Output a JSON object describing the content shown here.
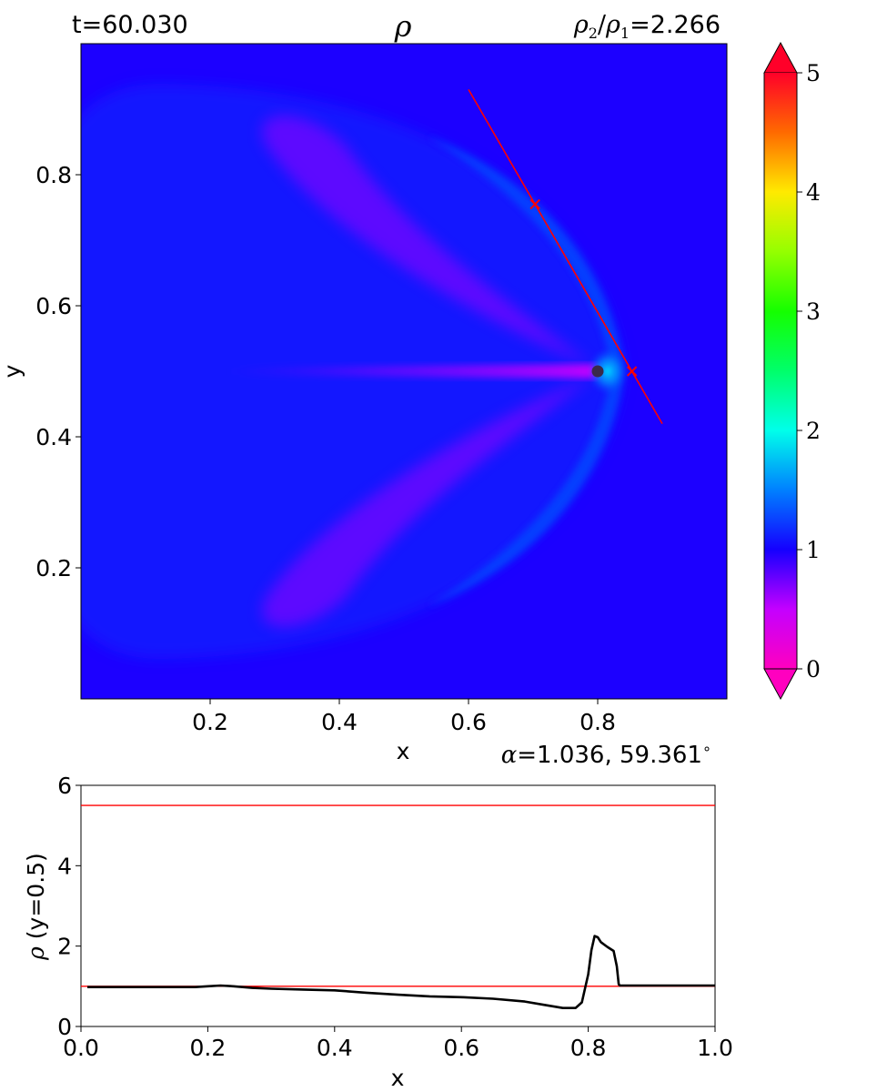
{
  "header": {
    "time": "t=60.030",
    "ratio_var": "ρ",
    "ratio_num_sub": "2",
    "ratio_den_sub": "1",
    "ratio_value": "=2.266"
  },
  "alpha_label": {
    "symbol": "α",
    "value": "=1.036, 59.361",
    "degree": "∘"
  },
  "colorbar": {
    "ticks": [
      "0",
      "1",
      "2",
      "3",
      "4",
      "5"
    ],
    "range": [
      0,
      5
    ],
    "colormap": "gist_rainbow_r",
    "extend": "both"
  },
  "chart_data": [
    {
      "type": "heatmap",
      "title": "ρ",
      "xlabel": "x",
      "ylabel": "y",
      "xlim": [
        0,
        1
      ],
      "ylim": [
        0,
        1
      ],
      "xticks": [
        "0.2",
        "0.4",
        "0.6",
        "0.8"
      ],
      "yticks": [
        "0.2",
        "0.4",
        "0.6",
        "0.8"
      ],
      "background_value": 1.0,
      "bow_shock_peak_value": 2.27,
      "wake_min_value": 0.45,
      "body_center": [
        0.8,
        0.5
      ],
      "cut_line": {
        "points": [
          [
            0.6,
            0.93
          ],
          [
            0.9,
            0.42
          ]
        ],
        "color": "#ff0000"
      },
      "markers": [
        {
          "x": 0.703,
          "y": 0.755,
          "symbol": "×"
        },
        {
          "x": 0.853,
          "y": 0.5,
          "symbol": "×"
        }
      ],
      "grid": false
    },
    {
      "type": "line",
      "xlabel": "x",
      "ylabel": "ρ (y=0.5)",
      "ylabel_symbol": "ρ",
      "ylabel_text": " (y=0.5)",
      "xlim": [
        0,
        1
      ],
      "ylim": [
        0,
        6
      ],
      "xticks": [
        "0.0",
        "0.2",
        "0.4",
        "0.6",
        "0.8",
        "1.0"
      ],
      "yticks": [
        "0",
        "2",
        "4",
        "6"
      ],
      "grid": false,
      "series": [
        {
          "color": "#000000",
          "x": [
            0.01,
            0.1,
            0.18,
            0.2,
            0.22,
            0.24,
            0.27,
            0.3,
            0.35,
            0.4,
            0.45,
            0.5,
            0.55,
            0.6,
            0.65,
            0.7,
            0.73,
            0.76,
            0.78,
            0.79,
            0.8,
            0.805,
            0.81,
            0.815,
            0.82,
            0.83,
            0.84,
            0.845,
            0.848,
            0.85,
            0.9,
            1.0
          ],
          "y": [
            0.98,
            0.98,
            0.98,
            1.0,
            1.02,
            1.0,
            0.96,
            0.94,
            0.92,
            0.9,
            0.84,
            0.79,
            0.75,
            0.73,
            0.69,
            0.62,
            0.54,
            0.46,
            0.46,
            0.6,
            1.3,
            1.9,
            2.25,
            2.22,
            2.1,
            1.98,
            1.88,
            1.5,
            1.05,
            1.02,
            1.02,
            1.02
          ]
        }
      ],
      "hlines": [
        {
          "y": 5.5,
          "color": "#ff0000"
        },
        {
          "y": 1.0,
          "color": "#ff0000"
        }
      ]
    }
  ]
}
